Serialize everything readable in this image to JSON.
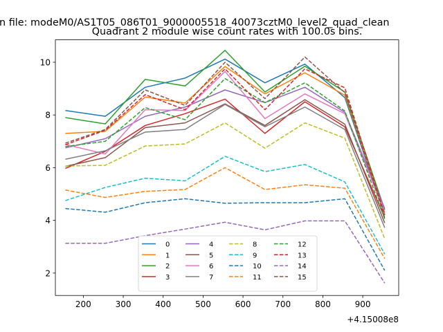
{
  "chart_data": {
    "type": "line",
    "suptitle": "n file: modeM0/AS1T05_086T01_9000005518_40073cztM0_level2_quad_clean",
    "title": "Quadrant 2 module wise count rates with 100.0s bins.",
    "xlabel": "",
    "ylabel": "",
    "x_offset_label": "+4.15008e8",
    "xlim": [
      130,
      990
    ],
    "ylim": [
      1.15,
      10.85
    ],
    "xticks": [
      200,
      300,
      400,
      500,
      600,
      700,
      800,
      900
    ],
    "yticks": [
      2,
      4,
      6,
      8,
      10
    ],
    "x": [
      155,
      255,
      355,
      455,
      555,
      655,
      755,
      855,
      955
    ],
    "legend_position": "bottom-center",
    "series": [
      {
        "name": "0",
        "color": "#1f77b4",
        "dash": false,
        "values": [
          8.17,
          7.95,
          9.05,
          9.4,
          10.12,
          9.22,
          9.93,
          8.66,
          4.2
        ]
      },
      {
        "name": "1",
        "color": "#ff7f0e",
        "dash": false,
        "values": [
          7.3,
          7.38,
          8.68,
          8.45,
          9.84,
          8.8,
          9.6,
          8.75,
          4.26
        ]
      },
      {
        "name": "2",
        "color": "#2ca02c",
        "dash": false,
        "values": [
          7.9,
          7.66,
          9.35,
          9.1,
          10.45,
          8.87,
          9.85,
          8.87,
          4.4
        ]
      },
      {
        "name": "3",
        "color": "#d62728",
        "dash": false,
        "values": [
          5.97,
          6.62,
          7.6,
          8.05,
          8.6,
          7.3,
          8.5,
          7.55,
          4.1
        ]
      },
      {
        "name": "4",
        "color": "#9467bd",
        "dash": false,
        "values": [
          6.75,
          7.1,
          7.95,
          8.3,
          8.95,
          8.47,
          9.05,
          8.1,
          4.45
        ]
      },
      {
        "name": "5",
        "color": "#8c564b",
        "dash": false,
        "values": [
          6.05,
          6.38,
          7.52,
          7.7,
          8.42,
          7.6,
          8.58,
          7.65,
          3.9
        ]
      },
      {
        "name": "6",
        "color": "#e377c2",
        "dash": false,
        "values": [
          6.88,
          6.52,
          8.2,
          8.17,
          9.65,
          7.86,
          8.8,
          8.05,
          4.31
        ]
      },
      {
        "name": "7",
        "color": "#7f7f7f",
        "dash": false,
        "values": [
          6.32,
          6.64,
          7.35,
          7.45,
          8.4,
          7.55,
          8.3,
          7.45,
          3.72
        ]
      },
      {
        "name": "8",
        "color": "#bcbd22",
        "dash": true,
        "values": [
          6.06,
          6.09,
          6.82,
          6.9,
          7.7,
          6.74,
          7.7,
          7.12,
          3.3
        ]
      },
      {
        "name": "9",
        "color": "#17becf",
        "dash": true,
        "values": [
          4.75,
          5.25,
          5.6,
          5.5,
          6.43,
          5.85,
          6.12,
          5.46,
          2.72
        ]
      },
      {
        "name": "10",
        "color": "#1f77b4",
        "dash": true,
        "values": [
          4.45,
          4.31,
          4.67,
          4.82,
          4.65,
          4.67,
          4.67,
          4.82,
          2.1
        ]
      },
      {
        "name": "11",
        "color": "#ff7f0e",
        "dash": true,
        "values": [
          5.15,
          4.87,
          5.1,
          5.17,
          6.0,
          5.17,
          5.35,
          5.22,
          2.55
        ]
      },
      {
        "name": "12",
        "color": "#2ca02c",
        "dash": true,
        "values": [
          6.8,
          7.0,
          8.28,
          7.82,
          9.38,
          8.47,
          9.22,
          8.15,
          4.05
        ]
      },
      {
        "name": "13",
        "color": "#d62728",
        "dash": true,
        "values": [
          6.87,
          7.42,
          8.77,
          8.2,
          9.75,
          8.2,
          9.75,
          9.03,
          4.21
        ]
      },
      {
        "name": "14",
        "color": "#9467bd",
        "dash": true,
        "values": [
          3.13,
          3.13,
          3.42,
          3.67,
          3.93,
          3.64,
          3.98,
          3.98,
          1.62
        ]
      },
      {
        "name": "15",
        "color": "#8c564b",
        "dash": true,
        "values": [
          6.93,
          7.45,
          8.95,
          8.36,
          10.0,
          8.62,
          10.2,
          8.85,
          4.1
        ]
      }
    ]
  }
}
